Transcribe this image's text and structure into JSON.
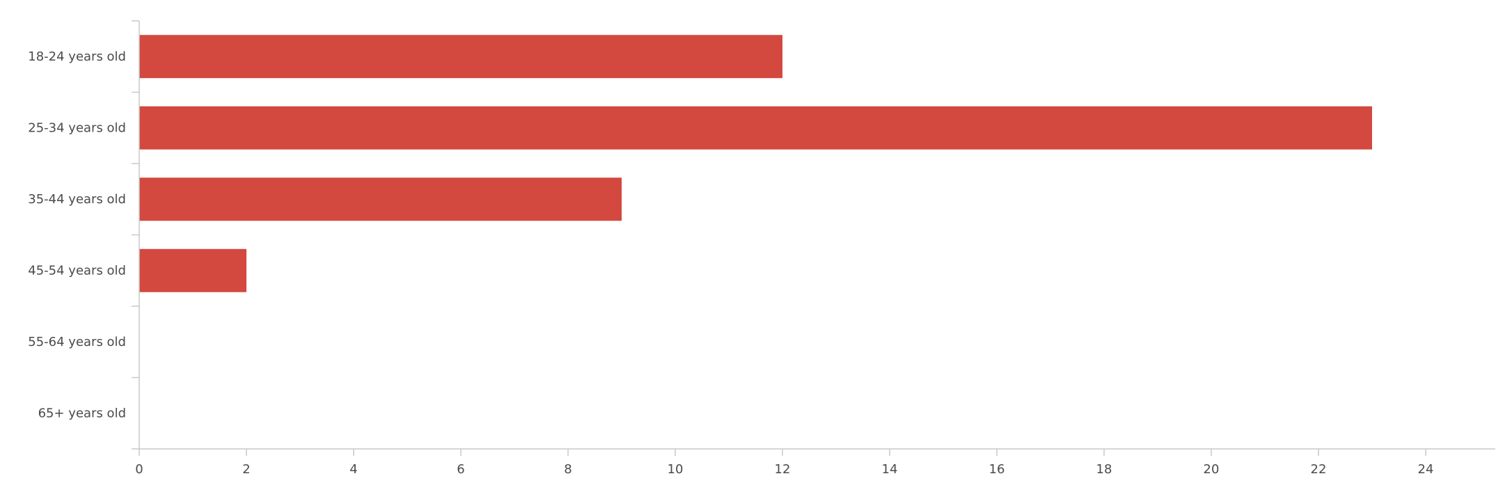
{
  "chart_data": {
    "type": "bar",
    "orientation": "horizontal",
    "categories": [
      "18-24 years old",
      "25-34 years old",
      "35-44 years old",
      "45-54 years old",
      "55-64 years old",
      "65+ years old"
    ],
    "values": [
      12,
      23,
      9,
      2,
      0,
      0
    ],
    "xticks": [
      "0",
      "2",
      "4",
      "6",
      "8",
      "10",
      "12",
      "14",
      "16",
      "18",
      "20",
      "22",
      "24"
    ],
    "xlim": [
      0,
      25.3
    ],
    "grid": false,
    "legend": "none"
  },
  "colors": {
    "bar": "#d3483f",
    "axis": "#c8c8c8",
    "text": "#4a4a4a"
  }
}
